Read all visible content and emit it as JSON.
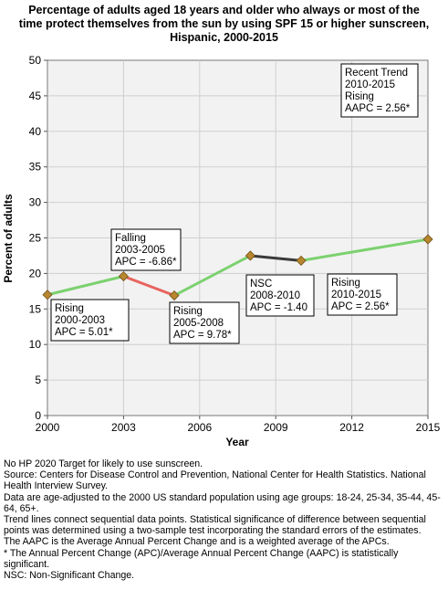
{
  "chart_data": {
    "type": "line",
    "title": [
      "Percentage of adults aged 18 years and older who always or most of the",
      "time protect themselves from the sun by using SPF 15 or higher sunscreen,",
      "Hispanic,  2000-2015"
    ],
    "xlabel": "Year",
    "ylabel": "Percent of adults",
    "xlim": [
      2000,
      2015
    ],
    "ylim": [
      0,
      50
    ],
    "x_ticks": [
      2000,
      2003,
      2006,
      2009,
      2012,
      2015
    ],
    "y_ticks": [
      0,
      5,
      10,
      15,
      20,
      25,
      30,
      35,
      40,
      45,
      50
    ],
    "grid": true,
    "points": [
      {
        "x": 2000,
        "y": 17.0
      },
      {
        "x": 2003,
        "y": 19.6
      },
      {
        "x": 2005,
        "y": 16.9
      },
      {
        "x": 2008,
        "y": 22.5
      },
      {
        "x": 2010,
        "y": 21.8
      },
      {
        "x": 2015,
        "y": 24.8
      }
    ],
    "segments": [
      {
        "from": 2000,
        "to": 2003,
        "trend": "rising",
        "color": "#7cd16f"
      },
      {
        "from": 2003,
        "to": 2005,
        "trend": "falling",
        "color": "#e8645e"
      },
      {
        "from": 2005,
        "to": 2008,
        "trend": "rising",
        "color": "#7cd16f"
      },
      {
        "from": 2008,
        "to": 2010,
        "trend": "nsc",
        "color": "#3a3a3a"
      },
      {
        "from": 2010,
        "to": 2015,
        "trend": "rising",
        "color": "#7cd16f"
      }
    ],
    "marker_color": "#b8862f",
    "annotations": [
      {
        "lines": [
          "Rising",
          "2000-2003",
          "APC =  5.01*"
        ]
      },
      {
        "lines": [
          "Falling",
          "2003-2005",
          "APC = -6.86*"
        ]
      },
      {
        "lines": [
          "Rising",
          "2005-2008",
          "APC =  9.78*"
        ]
      },
      {
        "lines": [
          "NSC",
          "2008-2010",
          "APC = -1.40"
        ]
      },
      {
        "lines": [
          "Rising",
          "2010-2015",
          "APC =  2.56*"
        ]
      },
      {
        "lines": [
          "Recent Trend",
          "2010-2015",
          "Rising",
          "AAPC =  2.56*"
        ]
      }
    ]
  },
  "notes": [
    "No HP 2020 Target for likely to use sunscreen.",
    "Source: Centers for Disease Control and Prevention, National Center for Health Statistics. National Health Interview Survey.",
    "Data are age-adjusted to the 2000 US standard population using age groups: 18-24, 25-34, 35-44, 45-64, 65+.",
    "Trend lines connect sequential data points. Statistical significance of difference between sequential points was determined using a two-sample test incorporating the standard errors of the estimates.",
    "The AAPC is the Average Annual Percent Change and is a weighted average of the APCs.",
    "* The Annual Percent Change (APC)/Average Annual Percent Change (AAPC) is statistically significant.",
    "NSC: Non-Significant Change."
  ]
}
